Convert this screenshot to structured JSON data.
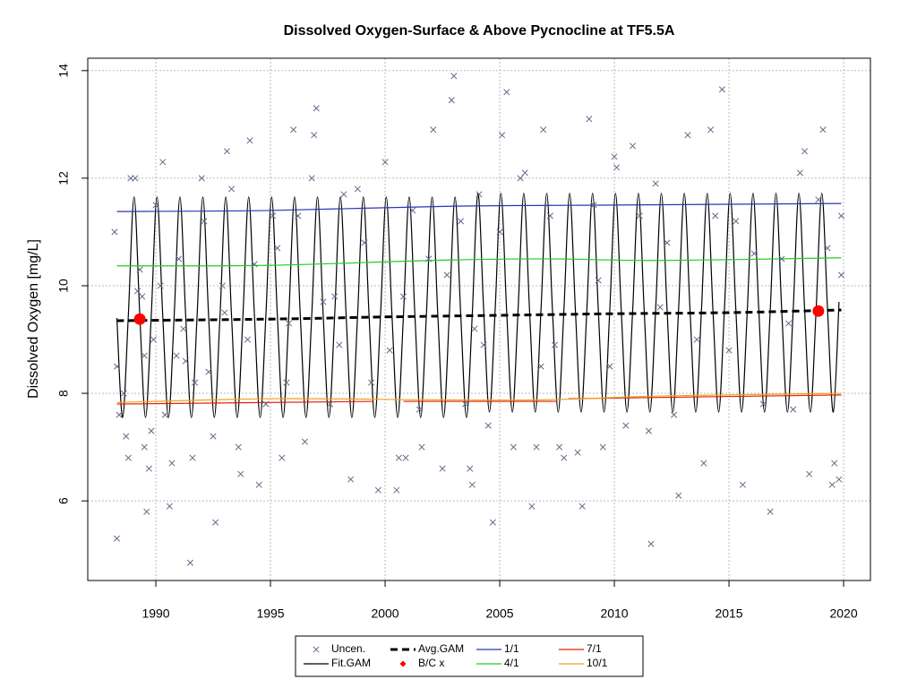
{
  "chart_data": {
    "type": "line",
    "title": "Dissolved Oxygen-Surface & Above Pycnocline at TF5.5A",
    "y_label": "Dissolved Oxygen [mg/L]",
    "xlim": [
      1987.03,
      2021.17
    ],
    "ylim": [
      4.52,
      14.23
    ],
    "xticks": [
      1990,
      1995,
      2000,
      2005,
      2010,
      2015,
      2020
    ],
    "yticks": [
      6,
      8,
      10,
      12,
      14
    ],
    "grid": true,
    "legend": "bottom",
    "series": [
      {
        "name": "Uncen.",
        "mark": "x",
        "color": "#5f6b88",
        "x": [
          1988.2,
          1988.3,
          1988.3,
          1988.4,
          1988.6,
          1988.7,
          1988.8,
          1988.9,
          1989.1,
          1989.2,
          1989.3,
          1989.4,
          1989.5,
          1989.6,
          1989.7,
          1989.8,
          1989.9,
          1990.0,
          1990.2,
          1990.3,
          1990.4,
          1990.6,
          1990.7,
          1990.9,
          1991.0,
          1991.3,
          1991.5,
          1991.6,
          1991.7,
          1992.0,
          1992.1,
          1992.3,
          1992.5,
          1992.6,
          1992.9,
          1993.1,
          1993.3,
          1993.6,
          1993.7,
          1994.0,
          1994.1,
          1994.3,
          1994.5,
          1994.8,
          1995.1,
          1995.3,
          1995.5,
          1995.7,
          1996.0,
          1996.2,
          1996.5,
          1996.8,
          1996.9,
          1997.0,
          1997.3,
          1997.6,
          1997.8,
          1998.2,
          1998.5,
          1998.8,
          1999.1,
          1999.4,
          1999.7,
          2000.0,
          2000.2,
          2000.5,
          2000.6,
          2000.9,
          2001.2,
          2001.5,
          2001.6,
          2001.9,
          2002.1,
          2002.5,
          2002.7,
          2002.9,
          2003.0,
          2003.3,
          2003.5,
          2003.7,
          2003.8,
          2004.1,
          2004.3,
          2004.5,
          2004.7,
          2005.0,
          2005.1,
          2005.3,
          2005.6,
          2005.9,
          2006.1,
          2006.4,
          2006.6,
          2006.9,
          2007.2,
          2007.4,
          2007.6,
          2007.8,
          2008.4,
          2008.6,
          2008.9,
          2009.1,
          2009.5,
          2009.8,
          2010.0,
          2010.1,
          2010.5,
          2010.8,
          2011.1,
          2011.5,
          2011.6,
          2011.8,
          2012.3,
          2012.6,
          2012.8,
          2013.2,
          2013.6,
          2013.9,
          2014.2,
          2014.4,
          2014.7,
          2015.3,
          2015.6,
          2016.1,
          2016.5,
          2016.8,
          2017.3,
          2017.8,
          2018.1,
          2018.3,
          2018.5,
          2018.9,
          2019.1,
          2019.3,
          2019.5,
          2019.6,
          2019.8,
          2019.9,
          2019.9,
          1989.5,
          1991.2,
          1993.0,
          1995.8,
          1998.0,
          2000.8,
          2003.9,
          2006.8,
          2009.3,
          2012.0,
          2015.0,
          2017.6
        ],
        "values": [
          11.0,
          5.3,
          8.5,
          7.6,
          8.0,
          7.2,
          6.8,
          12.0,
          12.0,
          9.9,
          10.3,
          9.8,
          7.0,
          5.8,
          6.6,
          7.3,
          9.0,
          11.5,
          10.0,
          12.3,
          7.6,
          5.9,
          6.7,
          8.7,
          10.5,
          8.6,
          4.85,
          6.8,
          8.2,
          12.0,
          11.2,
          8.4,
          7.2,
          5.6,
          10.0,
          12.5,
          11.8,
          7.0,
          6.5,
          9.0,
          12.7,
          10.4,
          6.3,
          7.8,
          11.3,
          10.7,
          6.8,
          8.2,
          12.9,
          11.3,
          7.1,
          12.0,
          12.8,
          13.3,
          9.7,
          7.8,
          9.8,
          11.7,
          6.4,
          11.8,
          10.8,
          8.2,
          6.2,
          12.3,
          8.8,
          6.2,
          6.8,
          6.8,
          11.4,
          7.7,
          7.0,
          10.5,
          12.9,
          6.6,
          10.2,
          13.45,
          13.9,
          11.2,
          7.8,
          6.6,
          6.3,
          11.7,
          8.9,
          7.4,
          5.6,
          11.0,
          12.8,
          13.6,
          7.0,
          12.0,
          12.1,
          5.9,
          7.0,
          12.9,
          11.3,
          8.9,
          7.0,
          6.8,
          6.9,
          5.9,
          13.1,
          11.5,
          7.0,
          8.5,
          12.4,
          12.2,
          7.4,
          12.6,
          11.3,
          7.3,
          5.2,
          11.9,
          10.8,
          7.6,
          6.1,
          12.8,
          9.0,
          6.7,
          12.9,
          11.3,
          13.65,
          11.2,
          6.3,
          10.6,
          7.8,
          5.8,
          10.5,
          7.7,
          12.1,
          12.5,
          6.5,
          11.6,
          12.9,
          10.7,
          6.3,
          6.7,
          6.4,
          11.3,
          10.2,
          8.7,
          9.2,
          9.5,
          9.3,
          8.9,
          9.8,
          9.2,
          8.5,
          10.1,
          9.6,
          8.8,
          9.3
        ]
      },
      {
        "name": "Fit.GAM",
        "mark": "line",
        "color": "#000000",
        "x": [
          1988.3,
          1988.55,
          1988.8,
          1989.05,
          1989.3,
          1989.55,
          1989.8,
          1990.05,
          1990.3,
          1990.55,
          1990.8,
          1991.05,
          1991.3,
          1991.55,
          1991.8,
          1992.05,
          1992.3,
          1992.55,
          1992.8,
          1993.05,
          1993.3,
          1993.55,
          1993.8,
          1994.05,
          1994.3,
          1994.55,
          1994.8,
          1995.05,
          1995.3,
          1995.55,
          1995.8,
          1996.05,
          1996.3,
          1996.55,
          1996.8,
          1997.05,
          1997.3,
          1997.55,
          1997.8,
          1998.05,
          1998.3,
          1998.55,
          1998.8,
          1999.05,
          1999.3,
          1999.55,
          1999.8,
          2000.05,
          2000.3,
          2000.55,
          2000.8,
          2001.05,
          2001.3,
          2001.55,
          2001.8,
          2002.05,
          2002.3,
          2002.55,
          2002.8,
          2003.05,
          2003.3,
          2003.55,
          2003.8,
          2004.05,
          2004.3,
          2004.55,
          2004.8,
          2005.05,
          2005.3,
          2005.55,
          2005.8,
          2006.05,
          2006.3,
          2006.55,
          2006.8,
          2007.05,
          2007.3,
          2007.55,
          2007.8,
          2008.05,
          2008.3,
          2008.55,
          2008.8,
          2009.05,
          2009.3,
          2009.55,
          2009.8,
          2010.05,
          2010.3,
          2010.55,
          2010.8,
          2011.05,
          2011.3,
          2011.55,
          2011.8,
          2012.05,
          2012.3,
          2012.55,
          2012.8,
          2013.05,
          2013.3,
          2013.55,
          2013.8,
          2014.05,
          2014.3,
          2014.55,
          2014.8,
          2015.05,
          2015.3,
          2015.55,
          2015.8,
          2016.05,
          2016.3,
          2016.55,
          2016.8,
          2017.05,
          2017.3,
          2017.55,
          2017.8,
          2018.05,
          2018.3,
          2018.55,
          2018.8,
          2019.05,
          2019.3,
          2019.55,
          2019.8
        ],
        "values": [
          9.4,
          7.55,
          9.45,
          11.65,
          9.45,
          7.55,
          9.45,
          11.65,
          9.45,
          7.55,
          9.45,
          11.65,
          9.45,
          7.55,
          9.45,
          11.65,
          9.45,
          7.55,
          9.45,
          11.65,
          9.45,
          7.55,
          9.45,
          11.65,
          9.45,
          7.55,
          9.45,
          11.65,
          9.45,
          7.55,
          9.45,
          11.65,
          9.45,
          7.55,
          9.45,
          11.65,
          9.45,
          7.55,
          9.45,
          11.65,
          9.45,
          7.55,
          9.45,
          11.65,
          9.45,
          7.55,
          9.45,
          11.65,
          9.45,
          7.55,
          9.45,
          11.65,
          9.45,
          7.55,
          9.45,
          11.65,
          9.45,
          7.55,
          9.45,
          11.65,
          9.45,
          7.55,
          9.45,
          11.72,
          9.55,
          7.65,
          9.55,
          11.72,
          9.55,
          7.65,
          9.55,
          11.72,
          9.55,
          7.65,
          9.55,
          11.72,
          9.55,
          7.65,
          9.55,
          11.72,
          9.55,
          7.65,
          9.55,
          11.72,
          9.55,
          7.65,
          9.55,
          11.72,
          9.55,
          7.65,
          9.55,
          11.72,
          9.55,
          7.65,
          9.55,
          11.72,
          9.55,
          7.65,
          9.55,
          11.72,
          9.55,
          7.65,
          9.55,
          11.72,
          9.55,
          7.65,
          9.55,
          11.72,
          9.55,
          7.65,
          9.55,
          11.72,
          9.55,
          7.65,
          9.55,
          11.72,
          9.55,
          7.65,
          9.55,
          11.72,
          9.55,
          7.65,
          9.55,
          11.72,
          9.55,
          7.65,
          9.7
        ]
      },
      {
        "name": "Avg.GAM",
        "mark": "dashed",
        "color": "#000000",
        "x": [
          1988.3,
          1995,
          2000,
          2005,
          2010,
          2015,
          2019.9
        ],
        "values": [
          9.35,
          9.38,
          9.42,
          9.45,
          9.48,
          9.5,
          9.55
        ]
      },
      {
        "name": "B/C x",
        "mark": "point",
        "color": "#ff0000",
        "x": [
          1989.3,
          2018.9
        ],
        "values": [
          9.38,
          9.53
        ]
      },
      {
        "name": "1/1",
        "mark": "line",
        "color": "#2b35b5",
        "x": [
          1988.3,
          1995,
          2003,
          2010,
          2019.9
        ],
        "values": [
          11.38,
          11.4,
          11.48,
          11.5,
          11.53
        ]
      },
      {
        "name": "4/1",
        "mark": "line",
        "color": "#22cc22",
        "x": [
          1988.3,
          1995,
          2002,
          2007,
          2012,
          2019.9
        ],
        "values": [
          10.37,
          10.38,
          10.47,
          10.5,
          10.47,
          10.52
        ]
      },
      {
        "name": "7/1",
        "mark": "line",
        "color": "#dd2200",
        "x": [
          1988.3,
          1999.5,
          2000.2,
          2000.8,
          2007.5,
          2007.8,
          2008,
          2019.9
        ],
        "values": [
          7.8,
          7.85,
          null,
          7.85,
          7.85,
          null,
          7.9,
          7.97
        ]
      },
      {
        "name": "10/1",
        "mark": "line",
        "color": "#f0a020",
        "x": [
          1988.3,
          1995,
          2002,
          2007,
          2012,
          2019.9
        ],
        "values": [
          7.83,
          7.9,
          7.88,
          7.88,
          7.95,
          8.0
        ]
      }
    ]
  }
}
